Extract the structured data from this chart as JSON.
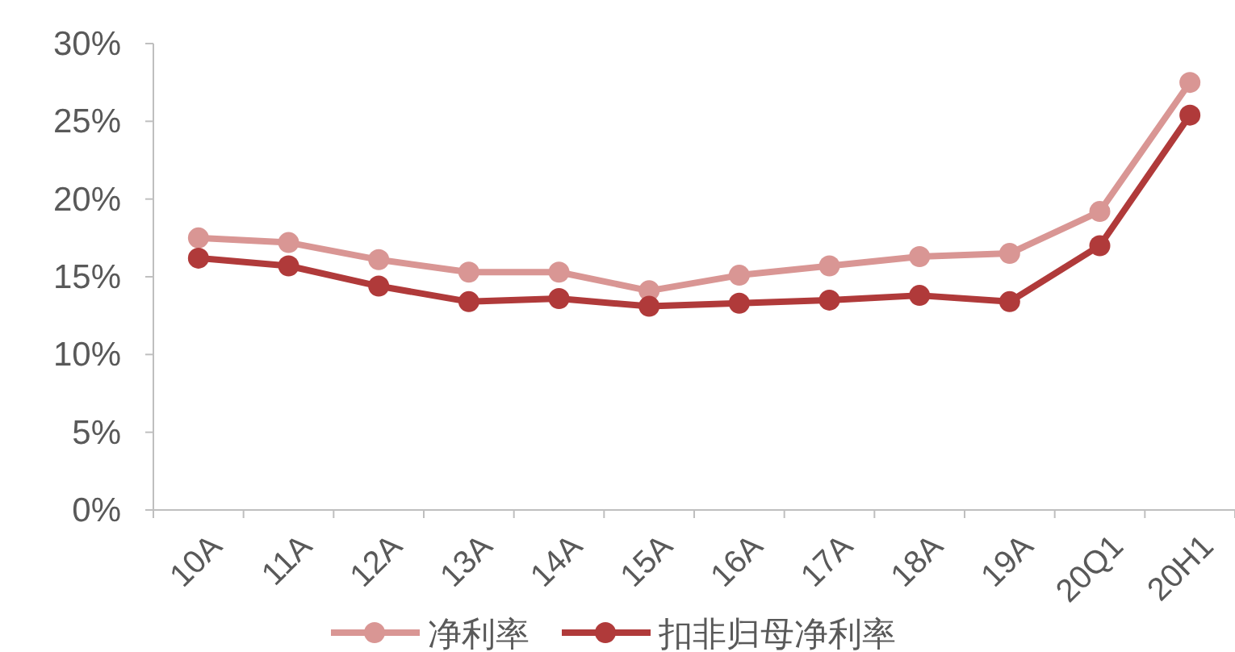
{
  "chart_data": {
    "type": "line",
    "categories": [
      "10A",
      "11A",
      "12A",
      "13A",
      "14A",
      "15A",
      "16A",
      "17A",
      "18A",
      "19A",
      "20Q1",
      "20H1"
    ],
    "series": [
      {
        "name": "净利率",
        "color": "#d99694",
        "values": [
          17.5,
          17.2,
          16.1,
          15.3,
          15.3,
          14.1,
          15.1,
          15.7,
          16.3,
          16.5,
          19.2,
          27.5
        ]
      },
      {
        "name": "扣非归母净利率",
        "color": "#b03a3a",
        "values": [
          16.2,
          15.7,
          14.4,
          13.4,
          13.6,
          13.1,
          13.3,
          13.5,
          13.8,
          13.4,
          17.0,
          25.4
        ]
      }
    ],
    "ylim": [
      0,
      30
    ],
    "yticks": [
      {
        "value": 0,
        "label": "0%"
      },
      {
        "value": 5,
        "label": "5%"
      },
      {
        "value": 10,
        "label": "10%"
      },
      {
        "value": 15,
        "label": "15%"
      },
      {
        "value": 20,
        "label": "20%"
      },
      {
        "value": 25,
        "label": "25%"
      },
      {
        "value": 30,
        "label": "30%"
      }
    ],
    "legend": "bottom",
    "marker": "circle",
    "line_style": "solid",
    "grid": false
  }
}
